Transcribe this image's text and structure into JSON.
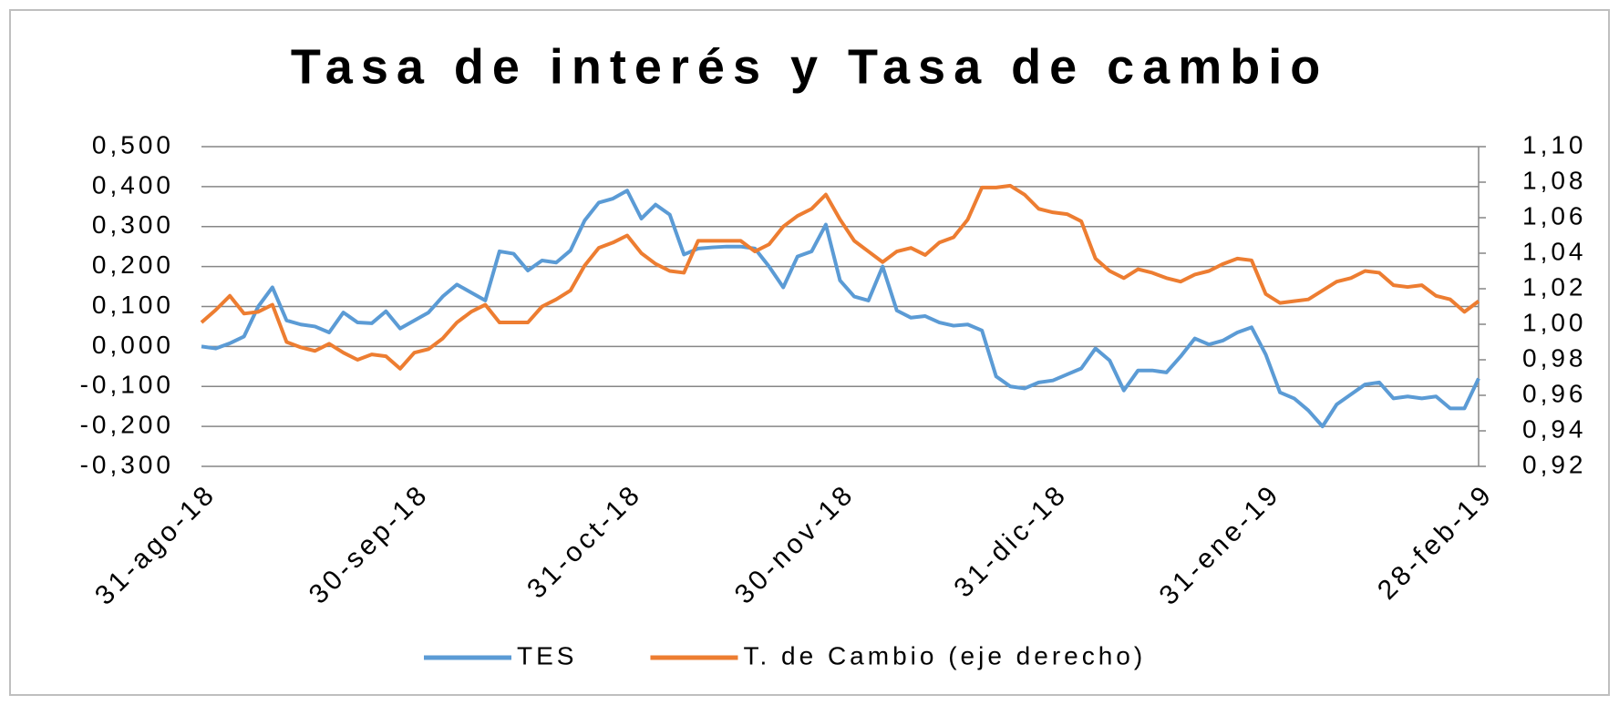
{
  "chart_data": {
    "type": "line",
    "title": "Tasa de interés y Tasa de cambio",
    "categories": [
      "31-ago-18",
      null,
      null,
      null,
      null,
      null,
      null,
      null,
      null,
      null,
      null,
      null,
      null,
      null,
      null,
      "30-sep-18",
      null,
      null,
      null,
      null,
      null,
      null,
      null,
      null,
      null,
      null,
      null,
      null,
      null,
      null,
      "31-oct-18",
      null,
      null,
      null,
      null,
      null,
      null,
      null,
      null,
      null,
      null,
      null,
      null,
      null,
      null,
      "30-nov-18",
      null,
      null,
      null,
      null,
      null,
      null,
      null,
      null,
      null,
      null,
      null,
      null,
      null,
      null,
      "31-dic-18",
      null,
      null,
      null,
      null,
      null,
      null,
      null,
      null,
      null,
      null,
      null,
      null,
      null,
      null,
      "31-ene-19",
      null,
      null,
      null,
      null,
      null,
      null,
      null,
      null,
      null,
      null,
      null,
      null,
      null,
      null,
      "28-feb-19"
    ],
    "series": [
      {
        "name": "TES",
        "color": "#5b9bd5",
        "values": [
          0.0,
          -0.005,
          0.008,
          0.025,
          0.1,
          0.148,
          0.065,
          0.055,
          0.05,
          0.035,
          0.085,
          0.06,
          0.058,
          0.088,
          0.045,
          0.065,
          0.085,
          0.125,
          0.155,
          0.135,
          0.115,
          0.238,
          0.232,
          0.19,
          0.215,
          0.21,
          0.24,
          0.315,
          0.36,
          0.37,
          0.39,
          0.32,
          0.355,
          0.33,
          0.23,
          0.245,
          0.248,
          0.25,
          0.25,
          0.245,
          0.2,
          0.148,
          0.225,
          0.238,
          0.305,
          0.165,
          0.125,
          0.115,
          0.2,
          0.09,
          0.072,
          0.076,
          0.06,
          0.052,
          0.055,
          0.04,
          -0.075,
          -0.1,
          -0.105,
          -0.09,
          -0.085,
          -0.07,
          -0.055,
          -0.005,
          -0.035,
          -0.11,
          -0.06,
          -0.06,
          -0.065,
          -0.025,
          0.02,
          0.005,
          0.015,
          0.035,
          0.048,
          -0.02,
          -0.115,
          -0.13,
          -0.16,
          -0.2,
          -0.145,
          -0.12,
          -0.095,
          -0.09,
          -0.13,
          -0.125,
          -0.13,
          -0.125,
          -0.155,
          -0.155,
          -0.08
        ]
      },
      {
        "name": "T. de Cambio (eje derecho)",
        "color": "#ed7d31",
        "axis": "y2",
        "values": [
          1.001,
          1.008,
          1.016,
          1.006,
          1.007,
          1.011,
          0.99,
          0.987,
          0.985,
          0.989,
          0.984,
          0.98,
          0.983,
          0.982,
          0.975,
          0.984,
          0.986,
          0.992,
          1.001,
          1.007,
          1.011,
          1.001,
          1.001,
          1.001,
          1.01,
          1.014,
          1.019,
          1.033,
          1.043,
          1.046,
          1.05,
          1.04,
          1.034,
          1.03,
          1.029,
          1.047,
          1.047,
          1.047,
          1.047,
          1.041,
          1.045,
          1.055,
          1.061,
          1.065,
          1.073,
          1.059,
          1.047,
          1.041,
          1.035,
          1.041,
          1.043,
          1.039,
          1.046,
          1.049,
          1.059,
          1.077,
          1.077,
          1.078,
          1.073,
          1.065,
          1.063,
          1.062,
          1.058,
          1.037,
          1.03,
          1.026,
          1.031,
          1.029,
          1.026,
          1.024,
          1.028,
          1.03,
          1.034,
          1.037,
          1.036,
          1.017,
          1.012,
          1.013,
          1.014,
          1.019,
          1.024,
          1.026,
          1.03,
          1.029,
          1.022,
          1.021,
          1.022,
          1.016,
          1.014,
          1.007,
          1.013
        ]
      }
    ],
    "ylim": [
      -0.3,
      0.5
    ],
    "yticks": [
      {
        "value": -0.3,
        "label": "-0,300"
      },
      {
        "value": -0.2,
        "label": "-0,200"
      },
      {
        "value": -0.1,
        "label": "-0,100"
      },
      {
        "value": 0,
        "label": "0,000"
      },
      {
        "value": 0.1,
        "label": "0,100"
      },
      {
        "value": 0.2,
        "label": "0,200"
      },
      {
        "value": 0.3,
        "label": "0,300"
      },
      {
        "value": 0.4,
        "label": "0,400"
      },
      {
        "value": 0.5,
        "label": "0,500"
      }
    ],
    "y2lim": [
      0.92,
      1.1
    ],
    "y2ticks": [
      {
        "value": 0.92,
        "label": "0,92"
      },
      {
        "value": 0.94,
        "label": "0,94"
      },
      {
        "value": 0.96,
        "label": "0,96"
      },
      {
        "value": 0.98,
        "label": "0,98"
      },
      {
        "value": 1.0,
        "label": "1,00"
      },
      {
        "value": 1.02,
        "label": "1,02"
      },
      {
        "value": 1.04,
        "label": "1,04"
      },
      {
        "value": 1.06,
        "label": "1,06"
      },
      {
        "value": 1.08,
        "label": "1,08"
      },
      {
        "value": 1.1,
        "label": "1,10"
      }
    ],
    "grid": true,
    "legend": "bottom"
  }
}
